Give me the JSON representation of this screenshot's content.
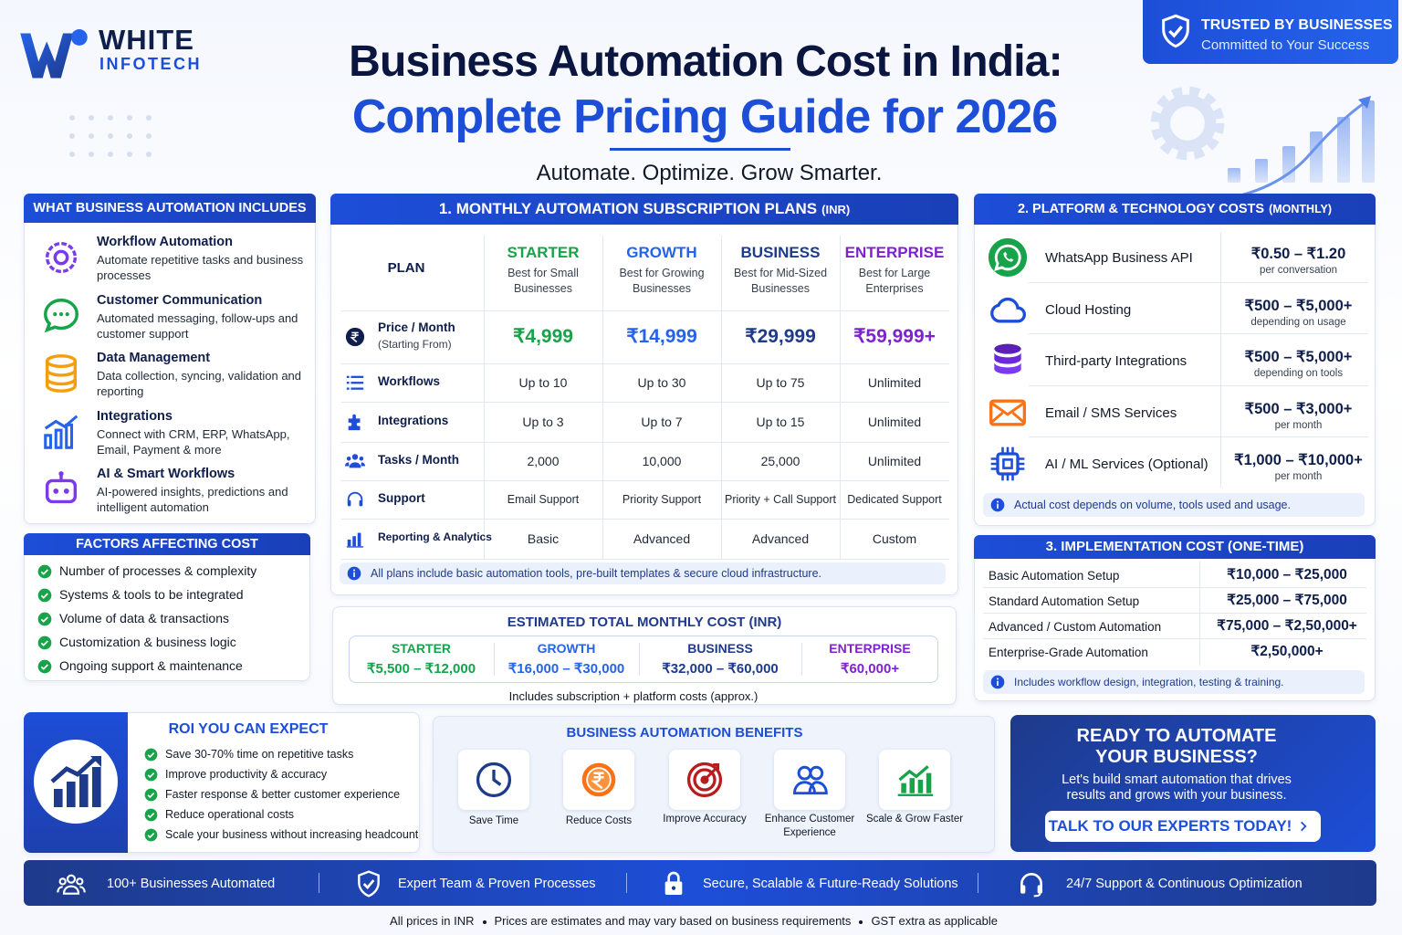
{
  "brand": {
    "name": "WHITE",
    "sub": "INFOTECH"
  },
  "header": {
    "title_line1": "Business Automation Cost in India:",
    "title_line2": "Complete Pricing Guide for 2026",
    "tagline": "Automate. Optimize. Grow Smarter."
  },
  "badge": {
    "title": "TRUSTED BY BUSINESSES",
    "subtitle": "Committed to Your Success"
  },
  "includes": {
    "title": "WHAT BUSINESS AUTOMATION INCLUDES",
    "items": [
      {
        "title": "Workflow Automation",
        "desc": "Automate repetitive tasks and business processes"
      },
      {
        "title": "Customer Communication",
        "desc": "Automated messaging, follow-ups and customer support"
      },
      {
        "title": "Data Management",
        "desc": "Data collection, syncing, validation and reporting"
      },
      {
        "title": "Integrations",
        "desc": "Connect with CRM, ERP, WhatsApp, Email, Payment & more"
      },
      {
        "title": "AI & Smart Workflows",
        "desc": "AI-powered insights, predictions and intelligent automation"
      }
    ]
  },
  "factors": {
    "title": "FACTORS AFFECTING COST",
    "items": [
      "Number of processes & complexity",
      "Systems & tools to be integrated",
      "Volume of data & transactions",
      "Customization & business logic",
      "Ongoing support & maintenance"
    ]
  },
  "plans": {
    "title": "1. MONTHLY AUTOMATION SUBSCRIPTION PLANS",
    "title_unit": "(INR)",
    "header_label": "PLAN",
    "columns": [
      {
        "name": "STARTER",
        "desc": "Best for Small Businesses",
        "color": "#16a34a"
      },
      {
        "name": "GROWTH",
        "desc": "Best for Growing Businesses",
        "color": "#2563eb"
      },
      {
        "name": "BUSINESS",
        "desc": "Best for Mid-Sized Businesses",
        "color": "#1e3a8a"
      },
      {
        "name": "ENTERPRISE",
        "desc": "Best for Large Enterprises",
        "color": "#7e22ce"
      }
    ],
    "rows": [
      {
        "label": "Price / Month",
        "sublabel": "(Starting From)",
        "cells": [
          "₹4,999",
          "₹14,999",
          "₹29,999",
          "₹59,999+"
        ]
      },
      {
        "label": "Workflows",
        "cells": [
          "Up to 10",
          "Up to 30",
          "Up to 75",
          "Unlimited"
        ]
      },
      {
        "label": "Integrations",
        "cells": [
          "Up to 3",
          "Up to 7",
          "Up to 15",
          "Unlimited"
        ]
      },
      {
        "label": "Tasks / Month",
        "cells": [
          "2,000",
          "10,000",
          "25,000",
          "Unlimited"
        ]
      },
      {
        "label": "Support",
        "cells": [
          "Email Support",
          "Priority Support",
          "Priority + Call Support",
          "Dedicated Support"
        ]
      },
      {
        "label": "Reporting & Analytics",
        "cells": [
          "Basic",
          "Advanced",
          "Advanced",
          "Custom"
        ]
      }
    ],
    "note": "All plans include basic automation tools, pre-built templates & secure cloud infrastructure."
  },
  "estimate": {
    "title": "ESTIMATED TOTAL MONTHLY COST (INR)",
    "tiers": [
      {
        "name": "STARTER",
        "range": "₹5,500 – ₹12,000"
      },
      {
        "name": "GROWTH",
        "range": "₹16,000 – ₹30,000"
      },
      {
        "name": "BUSINESS",
        "range": "₹32,000 – ₹60,000"
      },
      {
        "name": "ENTERPRISE",
        "range": "₹60,000+"
      }
    ],
    "note": "Includes subscription + platform costs (approx.)"
  },
  "platform": {
    "title": "2. PLATFORM & TECHNOLOGY COSTS",
    "title_unit": "(MONTHLY)",
    "items": [
      {
        "name": "WhatsApp Business API",
        "price": "₹0.50 – ₹1.20",
        "unit": "per conversation"
      },
      {
        "name": "Cloud Hosting",
        "price": "₹500 – ₹5,000+",
        "unit": "depending on usage"
      },
      {
        "name": "Third-party Integrations",
        "price": "₹500 – ₹5,000+",
        "unit": "depending on tools"
      },
      {
        "name": "Email / SMS Services",
        "price": "₹500 – ₹3,000+",
        "unit": "per month"
      },
      {
        "name": "AI / ML Services (Optional)",
        "price": "₹1,000 – ₹10,000+",
        "unit": "per month"
      }
    ],
    "note": "Actual cost depends on volume, tools used and usage."
  },
  "implementation": {
    "title": "3. IMPLEMENTATION COST (ONE-TIME)",
    "rows": [
      {
        "label": "Basic Automation Setup",
        "price": "₹10,000 – ₹25,000"
      },
      {
        "label": "Standard Automation Setup",
        "price": "₹25,000 – ₹75,000"
      },
      {
        "label": "Advanced / Custom Automation",
        "price": "₹75,000 – ₹2,50,000+"
      },
      {
        "label": "Enterprise-Grade Automation",
        "price": "₹2,50,000+"
      }
    ],
    "note": "Includes workflow design, integration, testing & training."
  },
  "roi": {
    "title": "ROI YOU CAN EXPECT",
    "items": [
      "Save 30-70% time on repetitive tasks",
      "Improve productivity & accuracy",
      "Faster response & better customer experience",
      "Reduce operational costs",
      "Scale your business without increasing headcount"
    ]
  },
  "benefits": {
    "title": "BUSINESS AUTOMATION BENEFITS",
    "items": [
      "Save Time",
      "Reduce Costs",
      "Improve Accuracy",
      "Enhance Customer Experience",
      "Scale & Grow Faster"
    ]
  },
  "cta": {
    "title": "READY TO AUTOMATE YOUR BUSINESS?",
    "text": "Let's build smart automation that drives results and grows with your business.",
    "button": "TALK TO OUR EXPERTS TODAY!"
  },
  "footer_bar": {
    "items": [
      "100+ Businesses Automated",
      "Expert Team & Proven Processes",
      "Secure, Scalable & Future-Ready Solutions",
      "24/7 Support & Continuous Optimization"
    ]
  },
  "footer_notes": [
    "All prices in INR",
    "Prices are estimates and may vary based on business requirements",
    "GST extra as applicable"
  ]
}
